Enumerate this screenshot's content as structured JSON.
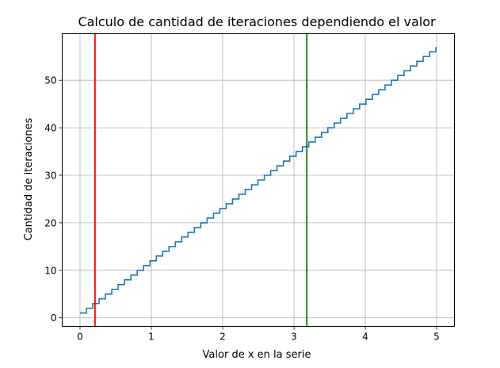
{
  "chart_data": {
    "type": "line",
    "title": "Calculo de cantidad de iteraciones dependiendo el valor",
    "xlabel": "Valor de x en la serie",
    "ylabel": "Cantidad de iteraciones",
    "xlim": [
      -0.25,
      5.25
    ],
    "ylim": [
      -1.8,
      59.8
    ],
    "xticks": [
      0,
      1,
      2,
      3,
      4,
      5
    ],
    "yticks": [
      0,
      10,
      20,
      30,
      40,
      50
    ],
    "grid": true,
    "series": [
      {
        "color": "#1f77b4",
        "step": {
          "x_start": 0.0,
          "x_end": 4.99,
          "y_start": 1,
          "y_end": 57
        }
      }
    ],
    "vertical_lines": [
      {
        "x": 0.21,
        "color": "#ff0000"
      },
      {
        "x": 3.18,
        "color": "#008000"
      }
    ]
  },
  "colors": {
    "line": "#1f77b4",
    "grid": "#b0b0b0",
    "axes": "#000000"
  }
}
